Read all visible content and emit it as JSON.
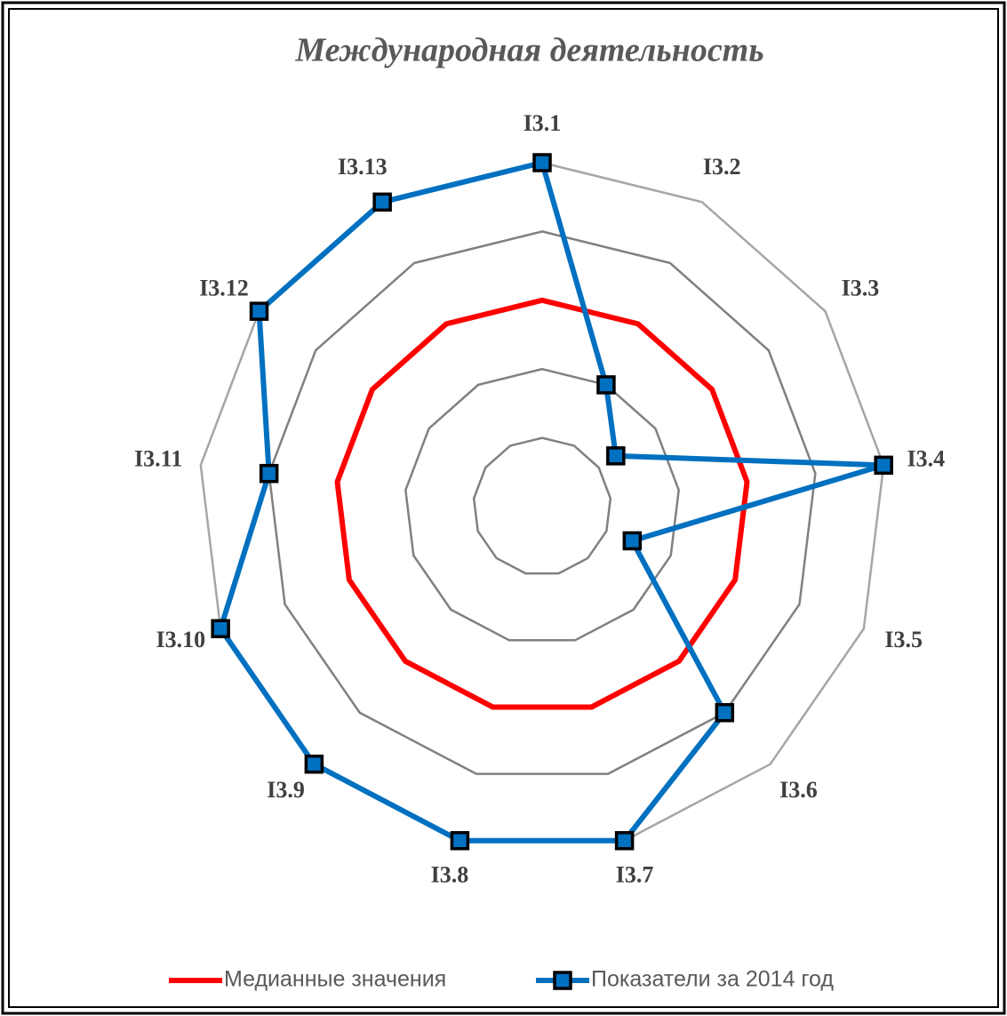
{
  "chart_data": {
    "type": "radar",
    "title": "Международная деятельность",
    "categories": [
      "I3.1",
      "I3.2",
      "I3.3",
      "I3.4",
      "I3.5",
      "I3.6",
      "I3.7",
      "I3.8",
      "I3.9",
      "I3.10",
      "I3.11",
      "I3.12",
      "I3.13"
    ],
    "series": [
      {
        "name": "Медианные значения",
        "color": "#ff0000",
        "values": [
          3,
          3,
          3,
          3,
          3,
          3,
          3,
          3,
          3,
          3,
          3,
          3,
          3
        ]
      },
      {
        "name": "Показатели за 2014 год",
        "color": "#0070c0",
        "values": [
          5,
          2,
          1.3,
          5,
          1.4,
          4,
          5,
          5,
          5,
          5,
          4,
          5,
          5
        ]
      }
    ],
    "ylim": [
      0,
      5
    ],
    "yticks": [
      1,
      2,
      3,
      4,
      5
    ],
    "grid": true,
    "legend": "bottom"
  }
}
